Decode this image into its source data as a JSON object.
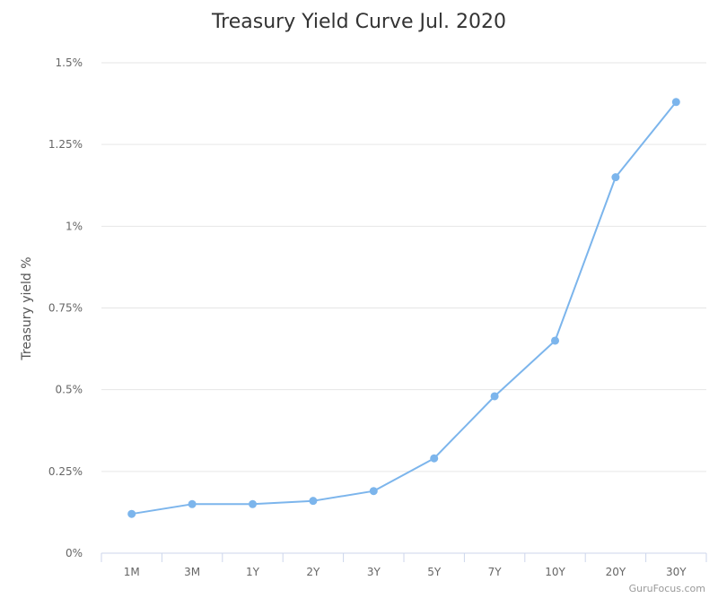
{
  "chart_data": {
    "type": "line",
    "title": "Treasury Yield Curve Jul. 2020",
    "ylabel": "Treasury yield %",
    "xlabel": "",
    "categories": [
      "1M",
      "3M",
      "1Y",
      "2Y",
      "3Y",
      "5Y",
      "7Y",
      "10Y",
      "20Y",
      "30Y"
    ],
    "series": [
      {
        "values": [
          0.12,
          0.15,
          0.15,
          0.16,
          0.19,
          0.29,
          0.48,
          0.65,
          1.15,
          1.38
        ]
      }
    ],
    "ylim": [
      0,
      1.5
    ],
    "yticks": [
      0,
      0.25,
      0.5,
      0.75,
      1,
      1.25,
      1.5
    ],
    "ytick_labels": [
      "0%",
      "0.25%",
      "0.5%",
      "0.75%",
      "1%",
      "1.25%",
      "1.5%"
    ],
    "grid": true,
    "legend": "none",
    "line_color": "#7cb5ec"
  },
  "credit": "GuruFocus.com"
}
